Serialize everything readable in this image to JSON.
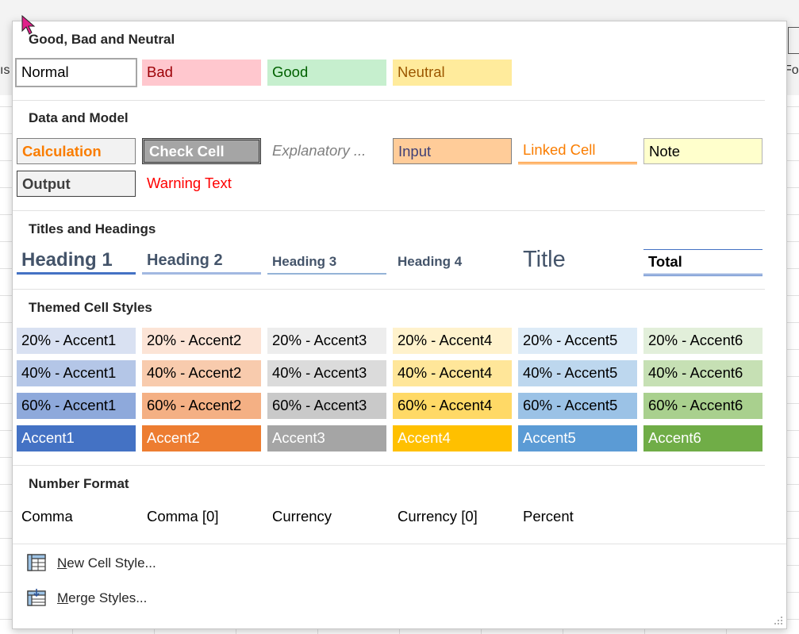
{
  "background": {
    "left_fragment": "ıs",
    "right_fragment": "For"
  },
  "sections": {
    "good_bad_neutral": {
      "title": "Good, Bad and Neutral",
      "styles": [
        "Normal",
        "Bad",
        "Good",
        "Neutral"
      ]
    },
    "data_and_model": {
      "title": "Data and Model",
      "styles": [
        "Calculation",
        "Check Cell",
        "Explanatory ...",
        "Input",
        "Linked Cell",
        "Note",
        "Output",
        "Warning Text"
      ]
    },
    "titles_and_headings": {
      "title": "Titles and Headings",
      "styles": [
        "Heading 1",
        "Heading 2",
        "Heading 3",
        "Heading 4",
        "Title",
        "Total"
      ]
    },
    "themed": {
      "title": "Themed Cell Styles",
      "row20": [
        "20% - Accent1",
        "20% - Accent2",
        "20% - Accent3",
        "20% - Accent4",
        "20% - Accent5",
        "20% - Accent6"
      ],
      "row40": [
        "40% - Accent1",
        "40% - Accent2",
        "40% - Accent3",
        "40% - Accent4",
        "40% - Accent5",
        "40% - Accent6"
      ],
      "row60": [
        "60% - Accent1",
        "60% - Accent2",
        "60% - Accent3",
        "60% - Accent4",
        "60% - Accent5",
        "60% - Accent6"
      ],
      "row100": [
        "Accent1",
        "Accent2",
        "Accent3",
        "Accent4",
        "Accent5",
        "Accent6"
      ]
    },
    "number_format": {
      "title": "Number Format",
      "styles": [
        "Comma",
        "Comma [0]",
        "Currency",
        "Currency [0]",
        "Percent"
      ]
    }
  },
  "menu": {
    "new_cell_style": {
      "accel": "N",
      "rest": "ew Cell Style..."
    },
    "merge_styles": {
      "accel": "M",
      "rest": "erge Styles..."
    }
  },
  "colors": {
    "accent1": "#4472c4",
    "accent2": "#ed7d31",
    "accent3": "#a5a5a5",
    "accent4": "#ffc000",
    "accent5": "#5b9bd5",
    "accent6": "#70ad47"
  },
  "icons": [
    "new-cell-style-icon",
    "merge-styles-icon",
    "resize-grip-icon",
    "mouse-cursor-icon"
  ]
}
